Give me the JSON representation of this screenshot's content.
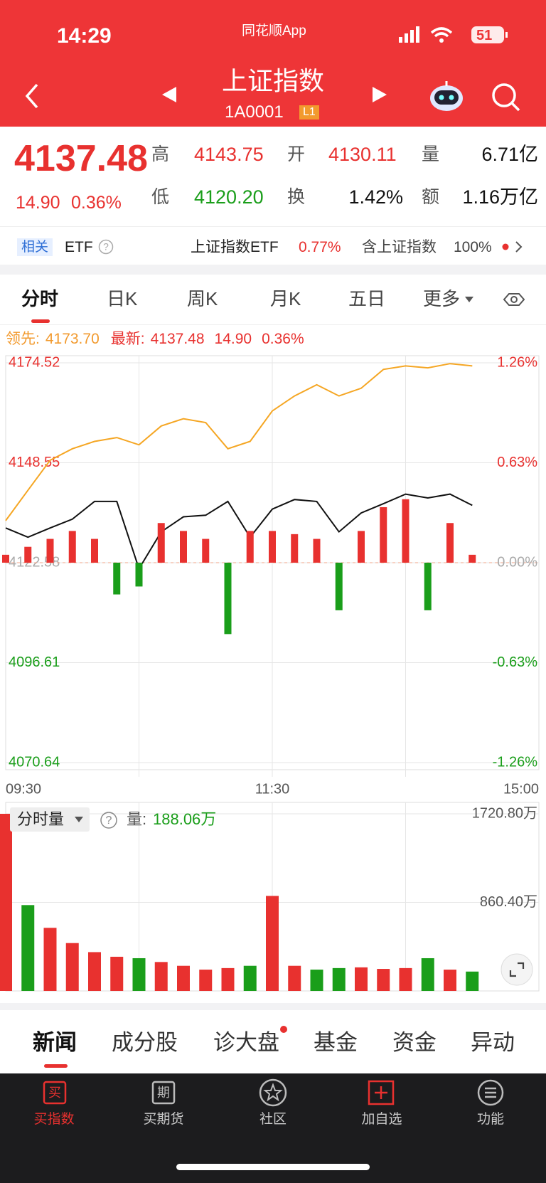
{
  "status_bar": {
    "time": "14:29",
    "app": "同花顺App",
    "battery": "51"
  },
  "header": {
    "title": "上证指数",
    "code": "1A0001",
    "level": "L1"
  },
  "quote": {
    "price": "4137.48",
    "change": "14.90",
    "change_pct": "0.36%",
    "high_label": "高",
    "high": "4143.75",
    "open_label": "开",
    "open": "4130.11",
    "volume_label": "量",
    "volume": "6.71亿",
    "low_label": "低",
    "low": "4120.20",
    "turnover_label": "换",
    "turnover": "1.42%",
    "amount_label": "额",
    "amount": "1.16万亿"
  },
  "related": {
    "tag": "相关",
    "etf": "ETF",
    "fund": "上证指数ETF",
    "fund_pct": "0.77%",
    "holding": "含上证指数",
    "holding_pct": "100%"
  },
  "period_tabs": [
    "分时",
    "日K",
    "周K",
    "月K",
    "五日",
    "更多"
  ],
  "intraday": {
    "lead_label": "领先:",
    "lead": "4173.70",
    "latest_label": "最新:",
    "latest": "4137.48",
    "change": "14.90",
    "change_pct": "0.36%"
  },
  "chart_data": [
    {
      "type": "line",
      "x": [
        0,
        10,
        20,
        30,
        40,
        50,
        60,
        70,
        80,
        90,
        100,
        110,
        120,
        130,
        140,
        150,
        160,
        170,
        180,
        190,
        200,
        210
      ],
      "xlim": [
        0,
        240
      ],
      "xticks": [
        {
          "value": 0,
          "label": "09:30"
        },
        {
          "value": 120,
          "label": "11:30"
        },
        {
          "value": 240,
          "label": "15:00"
        }
      ],
      "ylim": [
        4070.64,
        4174.52
      ],
      "yticks": [
        4174.52,
        4148.55,
        4122.58,
        4096.61,
        4070.64
      ],
      "y2lim": [
        -1.26,
        1.26
      ],
      "y2ticks": [
        {
          "value": 1.26,
          "label": "1.26%"
        },
        {
          "value": 0.63,
          "label": "0.63%"
        },
        {
          "value": 0,
          "label": "0.00%"
        },
        {
          "value": -0.63,
          "label": "-0.63%"
        },
        {
          "value": -1.26,
          "label": "-1.26%"
        }
      ],
      "grid": true,
      "colors": {
        "up": "#e8312f",
        "down": "#1a9e1a"
      },
      "series": [
        {
          "color": "#f5a623",
          "values": [
            4133.5,
            4141.4,
            4149.2,
            4152.2,
            4154.1,
            4155.1,
            4153.2,
            4158.1,
            4160.0,
            4159.0,
            4152.2,
            4154.1,
            4162.0,
            4165.9,
            4168.8,
            4165.9,
            4167.9,
            4172.8,
            4173.7,
            4173.2,
            4174.3,
            4173.7
          ]
        },
        {
          "color": "#111111",
          "values": [
            4131.6,
            4129.2,
            4131.6,
            4133.9,
            4138.5,
            4138.5,
            4121.0,
            4130.6,
            4134.5,
            4134.9,
            4138.5,
            4129.2,
            4136.5,
            4139.0,
            4138.5,
            4130.6,
            4135.5,
            4137.9,
            4140.4,
            4139.4,
            4140.4,
            4137.48
          ]
        },
        {
          "type": "bar",
          "axis": "y2",
          "values": [
            0.05,
            0.1,
            0.15,
            0.2,
            0.15,
            -0.2,
            -0.15,
            0.25,
            0.2,
            0.15,
            -0.45,
            0.2,
            0.2,
            0.18,
            0.15,
            -0.3,
            0.2,
            0.35,
            0.4,
            -0.3,
            0.25,
            0.05
          ]
        }
      ]
    },
    {
      "type": "bar",
      "x": [
        0,
        10,
        20,
        30,
        40,
        50,
        60,
        70,
        80,
        90,
        100,
        110,
        120,
        130,
        140,
        150,
        160,
        170,
        180,
        190,
        200,
        210
      ],
      "xlim": [
        0,
        240
      ],
      "ylim": [
        0,
        1720.8
      ],
      "yticks": [
        {
          "value": 1720.8,
          "label": "1720.80万"
        },
        {
          "value": 860.4,
          "label": "860.40万"
        }
      ],
      "values": [
        1720.8,
        834,
        613,
        465,
        377,
        332,
        318,
        281,
        244,
        207,
        222,
        244,
        923,
        244,
        207,
        222,
        229,
        214,
        222,
        318,
        207,
        188.06
      ]
    }
  ],
  "volume_panel": {
    "selector": "分时量",
    "volume_label": "量:",
    "volume": "188.06万"
  },
  "news_tabs": [
    "新闻",
    "成分股",
    "诊大盘",
    "基金",
    "资金",
    "异动"
  ],
  "nav": [
    "买指数",
    "买期货",
    "社区",
    "加自选",
    "功能"
  ]
}
